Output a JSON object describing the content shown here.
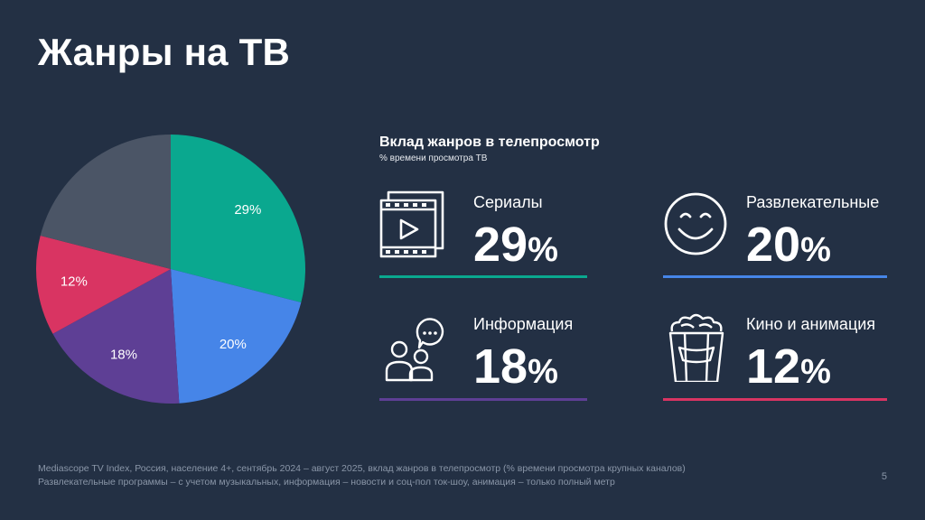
{
  "slide": {
    "title": "Жанры на ТВ",
    "page_number": "5"
  },
  "chart_data": {
    "type": "pie",
    "slices": [
      {
        "value": 29,
        "label": "29%",
        "color": "#0aa88f"
      },
      {
        "value": 20,
        "label": "20%",
        "color": "#4685e8"
      },
      {
        "value": 18,
        "label": "18%",
        "color": "#5e3f95"
      },
      {
        "value": 12,
        "label": "12%",
        "color": "#d93462"
      },
      {
        "value": 21,
        "label": "",
        "color": "#4b5566"
      }
    ]
  },
  "stats": {
    "title": "Вклад жанров в телепросмотр",
    "subtitle": "% времени просмотра ТВ",
    "percent_sign": "%",
    "items": [
      {
        "name": "Сериалы",
        "value": "29",
        "icon": "film-icon",
        "color": "#0aa88f"
      },
      {
        "name": "Развлекательные",
        "value": "20",
        "icon": "smiley-icon",
        "color": "#4685e8"
      },
      {
        "name": "Информация",
        "value": "18",
        "icon": "talk-show-icon",
        "color": "#5e3f95"
      },
      {
        "name": "Кино и анимация",
        "value": "12",
        "icon": "popcorn-icon",
        "color": "#d93462"
      }
    ]
  },
  "footnote": {
    "line1": "Mediascope TV Index, Россия, население 4+, сентябрь 2024 – август 2025, вклад жанров в телепросмотр (% времени просмотра крупных каналов)",
    "line2": "Развлекательные программы – с учетом музыкальных, информация – новости и соц-пол ток-шоу, анимация – только полный метр"
  }
}
